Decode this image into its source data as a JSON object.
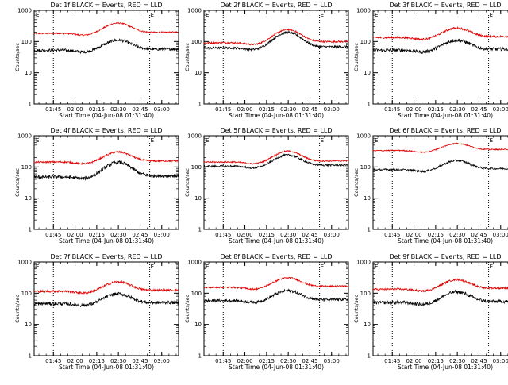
{
  "panels": [
    {
      "title": "Det 1f BLACK = Events, RED = LLD",
      "base_events": 55,
      "base_lld": 190,
      "peak_events": 110,
      "peak_lld": 390,
      "noise_events": 0.1,
      "noise_lld": 0.05
    },
    {
      "title": "Det 2f BLACK = Events, RED = LLD",
      "base_events": 65,
      "base_lld": 95,
      "peak_events": 195,
      "peak_lld": 240,
      "noise_events": 0.08,
      "noise_lld": 0.06
    },
    {
      "title": "Det 3f BLACK = Events, RED = LLD",
      "base_events": 55,
      "base_lld": 140,
      "peak_events": 110,
      "peak_lld": 270,
      "noise_events": 0.12,
      "noise_lld": 0.07
    },
    {
      "title": "Det 4f BLACK = Events, RED = LLD",
      "base_events": 50,
      "base_lld": 150,
      "peak_events": 140,
      "peak_lld": 300,
      "noise_events": 0.12,
      "noise_lld": 0.06
    },
    {
      "title": "Det 5f BLACK = Events, RED = LLD",
      "base_events": 110,
      "base_lld": 150,
      "peak_events": 240,
      "peak_lld": 320,
      "noise_events": 0.07,
      "noise_lld": 0.05
    },
    {
      "title": "Det 6f BLACK = Events, RED = LLD",
      "base_events": 85,
      "base_lld": 350,
      "peak_events": 160,
      "peak_lld": 560,
      "noise_events": 0.07,
      "noise_lld": 0.04
    },
    {
      "title": "Det 7f BLACK = Events, RED = LLD",
      "base_events": 48,
      "base_lld": 120,
      "peak_events": 95,
      "peak_lld": 230,
      "noise_events": 0.12,
      "noise_lld": 0.08
    },
    {
      "title": "Det 8f BLACK = Events, RED = LLD",
      "base_events": 60,
      "base_lld": 160,
      "peak_events": 120,
      "peak_lld": 310,
      "noise_events": 0.1,
      "noise_lld": 0.06
    },
    {
      "title": "Det 9f BLACK = Events, RED = LLD",
      "base_events": 52,
      "base_lld": 140,
      "peak_events": 110,
      "peak_lld": 270,
      "noise_events": 0.12,
      "noise_lld": 0.07
    }
  ],
  "axes": {
    "xlabel": "Start Time (04-Jun-08 01:31:40)",
    "ylabel": "Counts/sec",
    "x_ticks": [
      "01:45",
      "02:00",
      "02:15",
      "02:30",
      "02:45",
      "03:00"
    ],
    "y_ticks": [
      "1",
      "10",
      "100",
      "1000"
    ],
    "marker_left": "E",
    "marker_right": "E"
  },
  "chart_data": {
    "type": "line",
    "y_scale": "log",
    "ylim": [
      1,
      1000
    ],
    "x_range_minutes_from_start": [
      0,
      100
    ],
    "x_tick_minutes": [
      13.33,
      28.33,
      43.33,
      58.33,
      73.33,
      88.33
    ],
    "dotted_vertical_lines_minutes": [
      13.33,
      80.0
    ],
    "series": [
      {
        "name": "BLACK = Events",
        "color": "#000000"
      },
      {
        "name": "RED = LLD",
        "color": "#e00000"
      }
    ],
    "peak_center_minutes": 58.0,
    "peak_width_minutes": 11.0,
    "layout": "3x3 grid"
  }
}
